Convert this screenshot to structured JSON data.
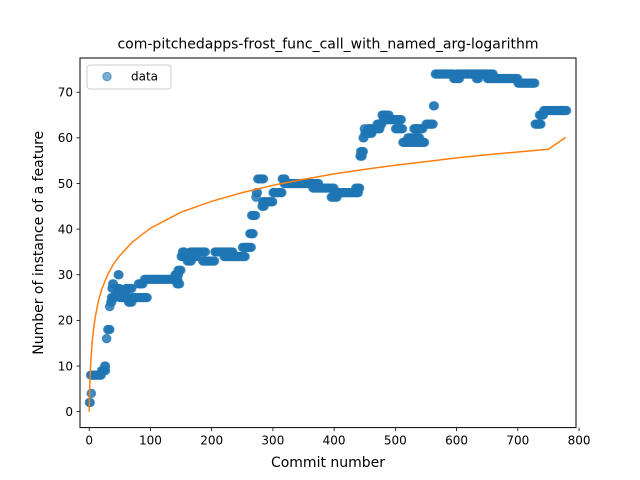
{
  "chart_data": {
    "type": "scatter",
    "title": "com-pitchedapps-frost_func_call_with_named_arg-logarithm",
    "xlabel": "Commit number",
    "ylabel": "Number of instance of a feature",
    "xlim": [
      -15,
      795
    ],
    "ylim": [
      -3.5,
      77.5
    ],
    "xticks": [
      0,
      100,
      200,
      300,
      400,
      500,
      600,
      700,
      800
    ],
    "yticks": [
      0,
      10,
      20,
      30,
      40,
      50,
      60,
      70
    ],
    "grid": false,
    "legend_position": "top-left",
    "colors": {
      "data": "#1f77b4",
      "fit": "#ff7f0e"
    },
    "series": [
      {
        "name": "data",
        "kind": "scatter",
        "segments": [
          [
            0,
            2,
            2,
            2
          ],
          [
            3,
            4,
            4,
            4
          ],
          [
            2,
            5,
            8,
            8
          ],
          [
            6,
            20,
            8,
            8
          ],
          [
            20,
            27,
            9,
            9
          ],
          [
            25,
            27,
            10,
            10
          ],
          [
            28,
            29,
            16,
            16
          ],
          [
            30,
            34,
            18,
            18
          ],
          [
            33,
            34,
            23,
            23
          ],
          [
            35,
            37,
            24,
            24
          ],
          [
            36,
            42,
            25,
            25
          ],
          [
            37,
            39,
            27,
            27
          ],
          [
            38,
            40,
            28,
            28
          ],
          [
            45,
            50,
            27,
            27
          ],
          [
            47,
            49,
            30,
            30
          ],
          [
            45,
            60,
            26,
            26
          ],
          [
            50,
            65,
            25,
            25
          ],
          [
            60,
            70,
            27,
            27
          ],
          [
            64,
            70,
            24,
            24
          ],
          [
            70,
            95,
            25,
            25
          ],
          [
            80,
            88,
            28,
            28
          ],
          [
            90,
            130,
            29,
            29
          ],
          [
            130,
            145,
            29,
            29
          ],
          [
            140,
            146,
            30,
            30
          ],
          [
            143,
            148,
            28,
            28
          ],
          [
            145,
            150,
            31,
            31
          ],
          [
            150,
            162,
            34,
            34
          ],
          [
            152,
            156,
            35,
            35
          ],
          [
            160,
            167,
            33,
            33
          ],
          [
            165,
            190,
            35,
            35
          ],
          [
            170,
            176,
            34,
            34
          ],
          [
            185,
            205,
            33,
            33
          ],
          [
            205,
            235,
            35,
            35
          ],
          [
            220,
            255,
            34,
            34
          ],
          [
            250,
            265,
            36,
            36
          ],
          [
            262,
            268,
            39,
            39
          ],
          [
            265,
            272,
            43,
            43
          ],
          [
            272,
            273,
            47,
            47
          ],
          [
            273,
            275,
            48,
            48
          ],
          [
            275,
            285,
            51,
            51
          ],
          [
            282,
            286,
            45,
            45
          ],
          [
            283,
            300,
            46,
            46
          ],
          [
            300,
            315,
            48,
            48
          ],
          [
            315,
            320,
            51,
            51
          ],
          [
            318,
            375,
            50,
            50
          ],
          [
            365,
            400,
            49,
            49
          ],
          [
            395,
            405,
            47,
            47
          ],
          [
            400,
            440,
            48,
            48
          ],
          [
            435,
            442,
            49,
            49
          ],
          [
            442,
            446,
            56,
            56
          ],
          [
            443,
            448,
            57,
            57
          ],
          [
            447,
            449,
            60,
            60
          ],
          [
            449,
            450,
            62,
            62
          ],
          [
            450,
            462,
            61,
            61
          ],
          [
            455,
            475,
            62,
            62
          ],
          [
            470,
            478,
            63,
            63
          ],
          [
            478,
            490,
            65,
            65
          ],
          [
            480,
            510,
            64,
            64
          ],
          [
            500,
            512,
            62,
            62
          ],
          [
            512,
            548,
            59,
            59
          ],
          [
            520,
            540,
            60,
            60
          ],
          [
            530,
            545,
            62,
            62
          ],
          [
            550,
            562,
            63,
            63
          ],
          [
            562,
            564,
            67,
            67
          ],
          [
            565,
            580,
            74,
            74
          ],
          [
            580,
            595,
            74,
            74
          ],
          [
            595,
            605,
            73,
            73
          ],
          [
            600,
            660,
            74,
            74
          ],
          [
            632,
            636,
            73,
            73
          ],
          [
            650,
            700,
            73,
            73
          ],
          [
            700,
            728,
            72,
            72
          ],
          [
            728,
            738,
            63,
            63
          ],
          [
            735,
            742,
            65,
            65
          ],
          [
            742,
            780,
            66,
            66
          ]
        ]
      },
      {
        "name": "fit",
        "kind": "line",
        "x": [
          0,
          1,
          2,
          3,
          5,
          7,
          10,
          15,
          20,
          30,
          40,
          50,
          70,
          100,
          150,
          200,
          250,
          300,
          350,
          400,
          450,
          500,
          550,
          600,
          650,
          700,
          750,
          778
        ],
        "y": [
          0,
          5.9,
          9.3,
          11.7,
          15.4,
          17.9,
          20.8,
          24.2,
          26.6,
          30.0,
          32.4,
          34.2,
          37.1,
          40.2,
          43.7,
          46.1,
          48.0,
          49.6,
          50.9,
          52.1,
          53.1,
          54.0,
          54.8,
          55.6,
          56.3,
          56.9,
          57.5,
          60.1
        ]
      }
    ]
  }
}
